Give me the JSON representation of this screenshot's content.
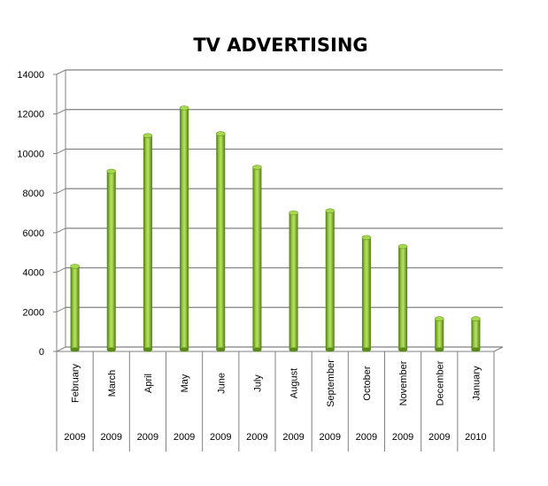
{
  "chart_data": {
    "type": "bar",
    "title": "TV ADVERTISING",
    "xlabel": "",
    "ylabel": "",
    "ylim": [
      0,
      14000
    ],
    "yticks": [
      0,
      2000,
      4000,
      6000,
      8000,
      10000,
      12000,
      14000
    ],
    "grid": true,
    "legend": "none",
    "bar_color": "#8cc63f",
    "categories": [
      {
        "month": "February",
        "year": "2009"
      },
      {
        "month": "March",
        "year": "2009"
      },
      {
        "month": "April",
        "year": "2009"
      },
      {
        "month": "May",
        "year": "2009"
      },
      {
        "month": "June",
        "year": "2009"
      },
      {
        "month": "July",
        "year": "2009"
      },
      {
        "month": "August",
        "year": "2009"
      },
      {
        "month": "September",
        "year": "2009"
      },
      {
        "month": "October",
        "year": "2009"
      },
      {
        "month": "November",
        "year": "2009"
      },
      {
        "month": "December",
        "year": "2009"
      },
      {
        "month": "January",
        "year": "2010"
      }
    ],
    "values": [
      4300,
      9100,
      10900,
      12300,
      11000,
      9300,
      7000,
      7100,
      5750,
      5300,
      1650,
      1650
    ]
  }
}
